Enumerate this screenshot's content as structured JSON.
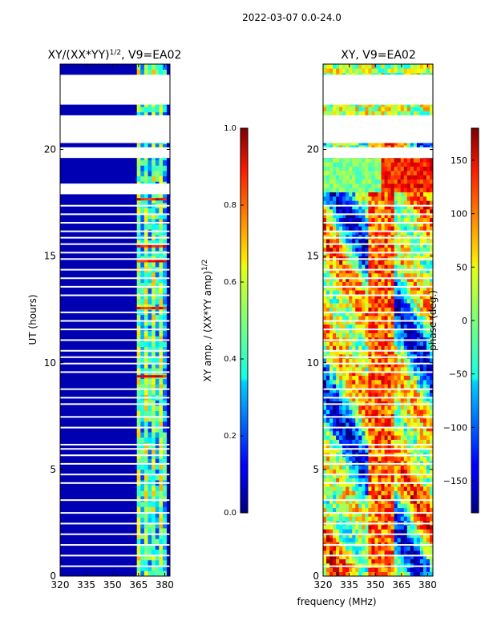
{
  "figure_title": "2022-03-07 0.0-24.0",
  "chart_data": [
    {
      "type": "heatmap",
      "title": "XY/(XX*YY)",
      "title_power": "1/2",
      "title_suffix": ", V9=EA02",
      "ylabel": "UT (hours)",
      "xlabel": "",
      "xlim": [
        320,
        383
      ],
      "ylim": [
        0,
        24
      ],
      "xticks": [
        "320",
        "335",
        "350",
        "365",
        "380"
      ],
      "yticks": [
        "0",
        "5",
        "10",
        "15",
        "20"
      ],
      "colorbar": {
        "label": "XY amp. / (XX*YY amp)",
        "label_power": "1/2",
        "range": [
          0.0,
          1.0
        ],
        "ticks": [
          "0.0",
          "0.2",
          "0.4",
          "0.6",
          "0.8",
          "1.0"
        ],
        "colormap": "jet"
      },
      "data_gaps_hours": [
        [
          17.9,
          18.4
        ],
        [
          19.6,
          20.1
        ],
        [
          20.3,
          21.6
        ],
        [
          22.1,
          23.5
        ]
      ],
      "flagged_rows_hours": [
        0.5,
        1.0,
        1.5,
        2.0,
        2.5,
        3.0,
        3.6,
        4.4,
        4.8,
        5.3,
        5.7,
        6.0,
        6.2,
        7.0,
        7.5,
        8.1,
        8.4,
        8.8,
        9.6,
        10.0,
        10.3,
        10.6,
        11.1,
        11.6,
        12.0,
        12.4,
        13.2,
        13.6,
        14.0,
        14.4,
        14.9,
        15.2,
        15.6,
        15.9,
        16.2,
        16.6,
        17.0,
        17.4
      ],
      "bright_band_mhz": [
        364,
        381
      ],
      "bright_band_value": 0.45,
      "background_value": 0.05
    },
    {
      "type": "heatmap",
      "title": "XY, V9=EA02",
      "ylabel": "",
      "xlabel": "frequency (MHz)",
      "xlim": [
        320,
        383
      ],
      "ylim": [
        0,
        24
      ],
      "xticks": [
        "320",
        "335",
        "350",
        "365",
        "380"
      ],
      "yticks": [
        "0",
        "5",
        "10",
        "15",
        "20"
      ],
      "colorbar": {
        "label": "phase (deg.)",
        "range": [
          -180,
          180
        ],
        "ticks": [
          "−150",
          "−100",
          "−50",
          "0",
          "50",
          "100",
          "150"
        ],
        "tick_values": [
          -150,
          -100,
          -50,
          0,
          50,
          100,
          150
        ],
        "colormap": "jet"
      },
      "data_gaps_hours": [
        [
          19.6,
          20.1
        ],
        [
          20.3,
          21.6
        ],
        [
          22.1,
          23.5
        ]
      ],
      "flagged_rows_hours": [
        0.5,
        1.0,
        1.5,
        2.0,
        2.5,
        3.0,
        3.6,
        4.4,
        4.8,
        5.3,
        5.7,
        6.0,
        6.2,
        7.0,
        7.5,
        8.1,
        8.4,
        8.8,
        9.6,
        10.0,
        10.3,
        10.6,
        11.1,
        11.6,
        12.0,
        12.4,
        13.2,
        13.6,
        14.0,
        14.4,
        14.9,
        15.2,
        15.6,
        15.9,
        16.2,
        16.6,
        17.0,
        17.4
      ]
    }
  ]
}
